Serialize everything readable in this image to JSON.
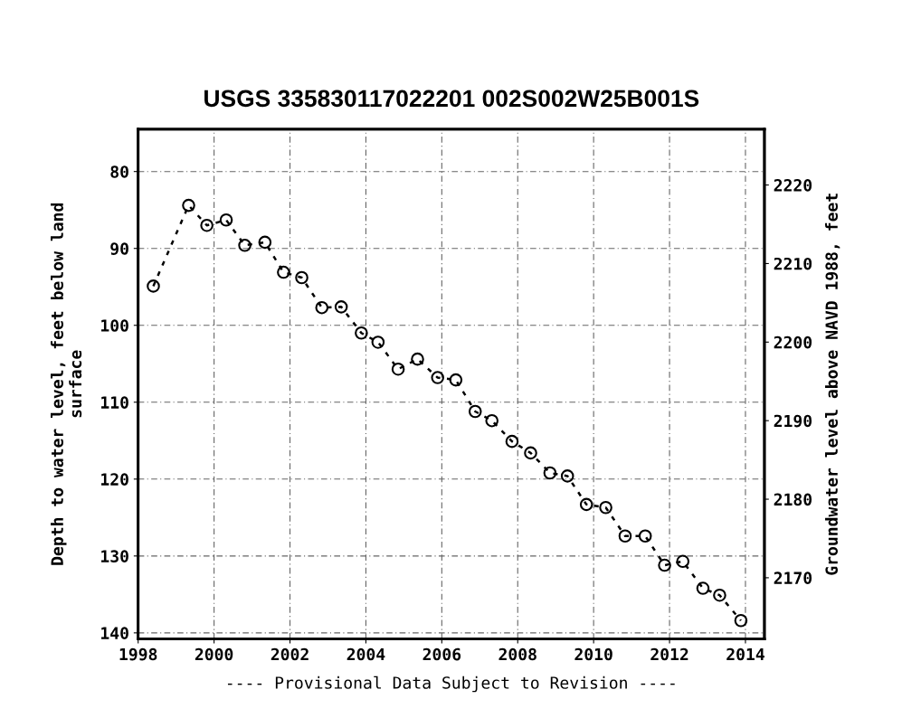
{
  "chart_data": {
    "type": "line",
    "title": "USGS 335830117022201 002S002W25B001S",
    "xlabel": "---- Provisional Data Subject to Revision ----",
    "ylabel": "Depth to water level, feet below land\nsurface",
    "y2label": "Groundwater level above NAVD 1988, feet",
    "x": [
      1998.4,
      1999.33,
      1999.81,
      2000.32,
      2000.81,
      2001.34,
      2001.83,
      2002.31,
      2002.84,
      2003.35,
      2003.88,
      2004.32,
      2004.85,
      2005.36,
      2005.89,
      2006.37,
      2006.88,
      2007.32,
      2007.85,
      2008.34,
      2008.85,
      2009.31,
      2009.81,
      2010.32,
      2010.83,
      2011.36,
      2011.87,
      2012.35,
      2012.88,
      2013.32,
      2013.88
    ],
    "series": [
      {
        "color": "#000000",
        "values": [
          94.9,
          84.4,
          87.0,
          86.3,
          89.6,
          89.2,
          93.1,
          93.8,
          97.7,
          97.6,
          101.0,
          102.2,
          105.7,
          104.4,
          106.8,
          107.1,
          111.2,
          112.4,
          115.1,
          116.6,
          119.2,
          119.6,
          123.3,
          123.7,
          127.4,
          127.4,
          131.2,
          130.7,
          134.2,
          135.1,
          138.4
        ]
      }
    ],
    "xlim": [
      1998,
      2014.5
    ],
    "xticks": [
      1998,
      2000,
      2002,
      2004,
      2006,
      2008,
      2010,
      2012,
      2014
    ],
    "ylim": [
      140.8,
      74.5
    ],
    "yticks": [
      80,
      90,
      100,
      110,
      120,
      130,
      140
    ],
    "y2lim": [
      2162.2,
      2227.1
    ],
    "y2ticks": [
      2170,
      2180,
      2190,
      2200,
      2210,
      2220
    ],
    "grid": true,
    "marker": "circle",
    "line_style": "dashed",
    "legend": false
  }
}
